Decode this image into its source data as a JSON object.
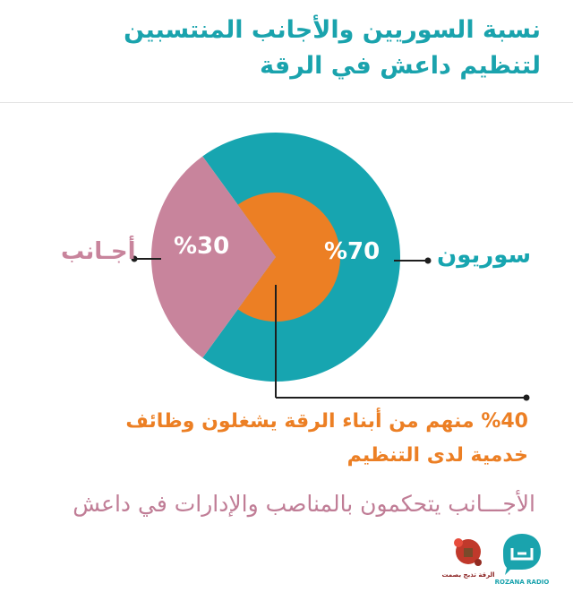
{
  "title": {
    "line1": "نسبة السوريين والأجانب المنتسبين",
    "line2": "لتنظيم داعش في الرقة"
  },
  "chart_data": {
    "type": "pie",
    "slices": [
      {
        "name": "سوريون",
        "value": 70,
        "label": "%70",
        "color": "#17a5b0"
      },
      {
        "name": "أجانب",
        "value": 30,
        "label": "%30",
        "color": "#c8849c"
      }
    ],
    "inner_segment": {
      "of": "سوريون",
      "value": 40,
      "unit": "percent",
      "color": "#ec7f24"
    }
  },
  "labels": {
    "syrians": "سوريون",
    "foreigners": "أجـانب",
    "syrians_pct": "%70",
    "foreigners_pct": "%30"
  },
  "note": {
    "line1": "%40 منهم من أبناء الرقة يشغلون وظائف",
    "line2": "خدمية لدى التنظيم"
  },
  "bottom_text": "الأجـــانب يتحكمون بالمناصب والإدارات في داعش",
  "logos": {
    "rozana_caption": "ROZANA RADIO",
    "raqqa_caption": "الرقة تذبح بصمت"
  }
}
